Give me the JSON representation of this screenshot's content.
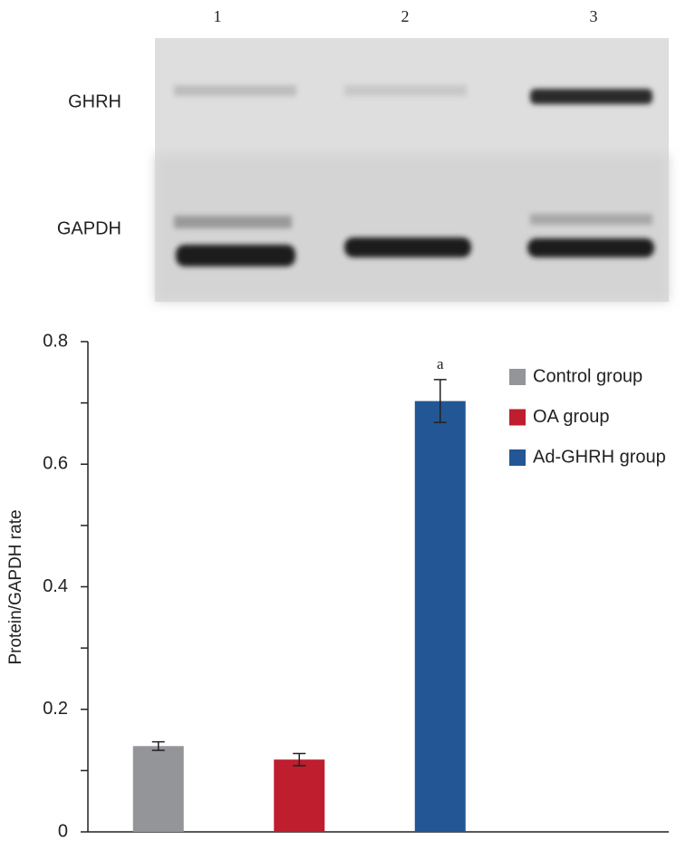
{
  "blot": {
    "lanes": [
      "1",
      "2",
      "3"
    ],
    "rows": [
      "GHRH",
      "GAPDH"
    ]
  },
  "chart_data": {
    "type": "bar",
    "y_label": "Protein/GAPDH rate",
    "categories": [
      null,
      null,
      null
    ],
    "series": [
      {
        "name": "Control group",
        "color": "#939598",
        "values": [
          0.14,
          null,
          null
        ],
        "errors": [
          0.007,
          null,
          null
        ]
      },
      {
        "name": "OA group",
        "color": "#be1e2d",
        "values": [
          null,
          0.118,
          null
        ],
        "errors": [
          null,
          0.01,
          null
        ]
      },
      {
        "name": "Ad-GHRH group",
        "color": "#235694",
        "values": [
          null,
          null,
          0.703
        ],
        "errors": [
          null,
          null,
          0.035
        ]
      }
    ],
    "annotations": [
      "a"
    ],
    "ylim": [
      0,
      0.8
    ],
    "yticks": [
      0,
      0.2,
      0.4,
      0.6,
      0.8
    ],
    "minor_yticks": [
      0.1,
      0.3,
      0.5,
      0.7
    ],
    "legend": "upper right"
  }
}
